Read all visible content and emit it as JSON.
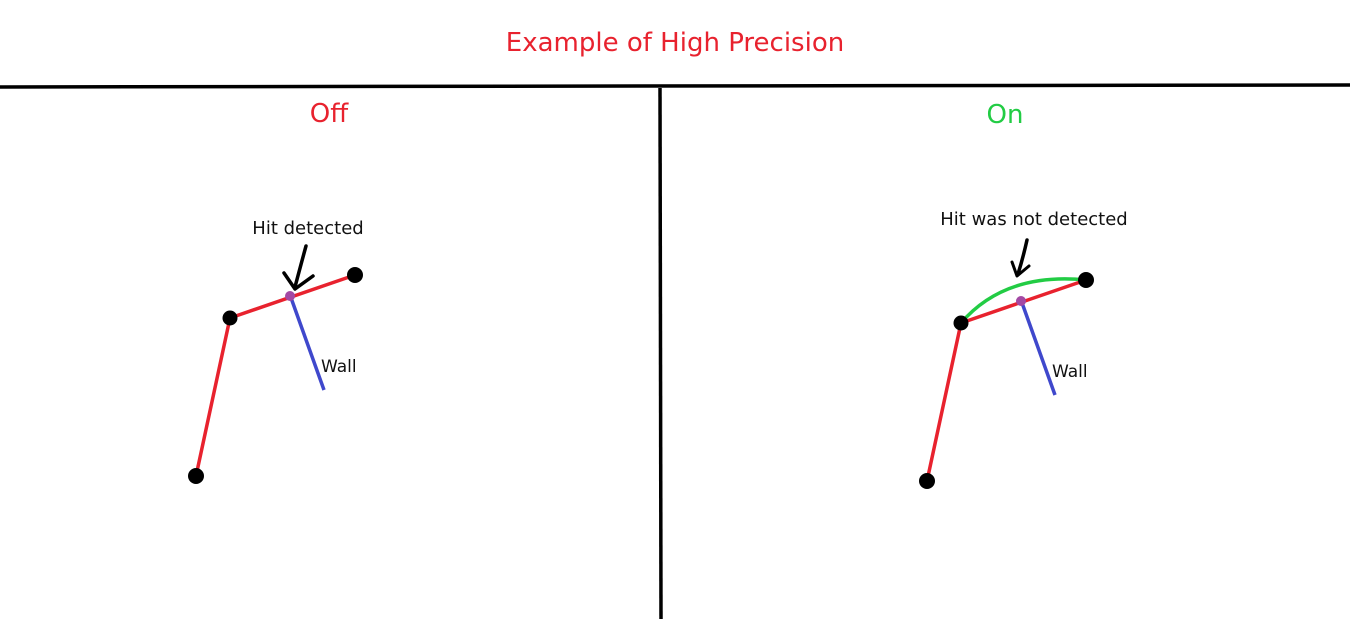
{
  "title": {
    "text": "Example of High Precision",
    "color": "#e8222e"
  },
  "panels": {
    "off": {
      "label": "Off",
      "label_color": "#e8222e",
      "annotation": "Hit detected",
      "wall_label": "Wall"
    },
    "on": {
      "label": "On",
      "label_color": "#22cc44",
      "annotation": "Hit was not detected",
      "wall_label": "Wall"
    }
  },
  "colors": {
    "segment": "#e8222e",
    "wall": "#3f48cc",
    "curve": "#22cc44",
    "hit_point": "#a349a4",
    "joint": "#000000",
    "divider": "#000000"
  }
}
